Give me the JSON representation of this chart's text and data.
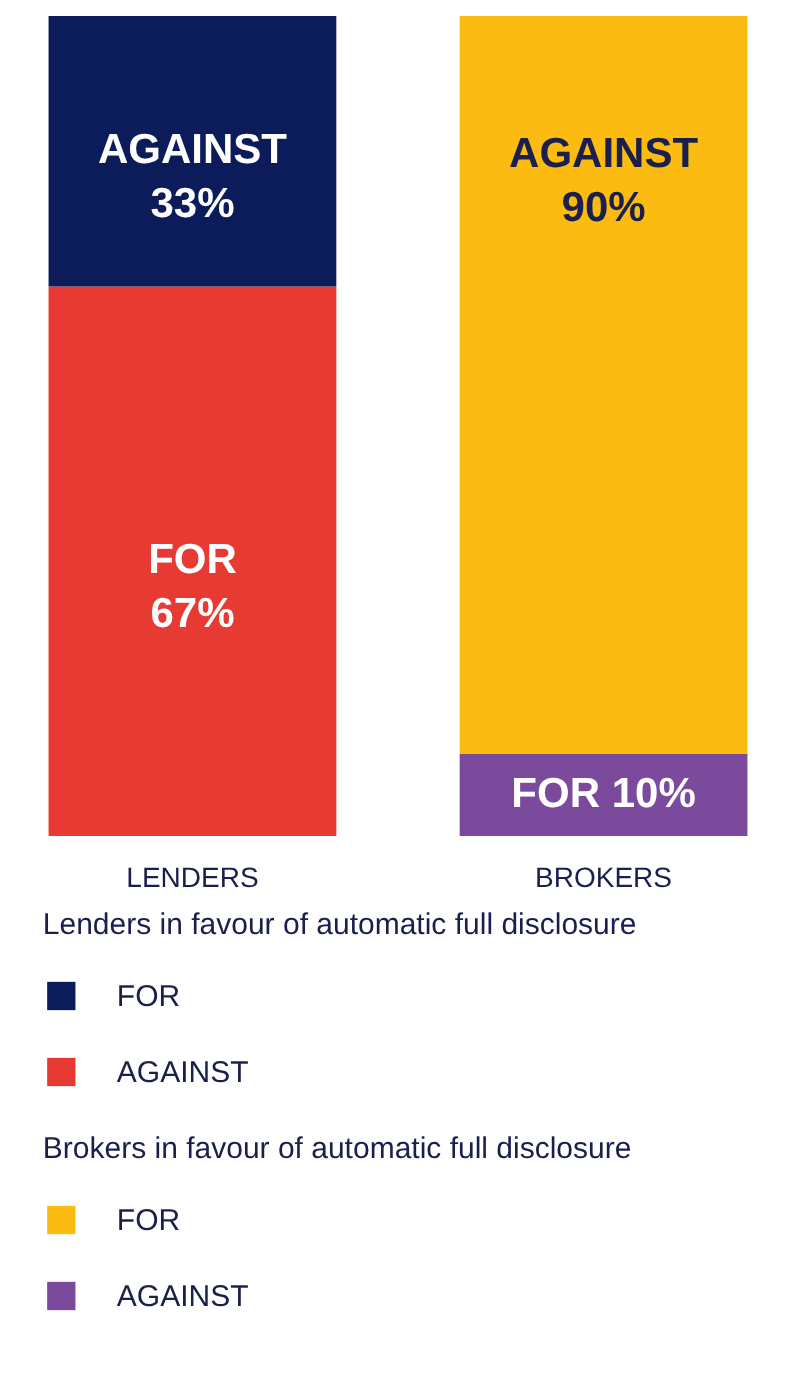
{
  "chart_data": {
    "type": "bar",
    "stacked": true,
    "categories": [
      "LENDERS",
      "BROKERS"
    ],
    "series": [
      {
        "colors": [
          "#e63a33",
          "#7b4a9c"
        ],
        "values": [
          67,
          10
        ],
        "value_labels": [
          "FOR\n67%",
          "FOR 10%"
        ]
      },
      {
        "colors": [
          "#0c1c5a",
          "#fbbb10"
        ],
        "values": [
          33,
          90
        ],
        "value_labels": [
          "AGAINST\n33%",
          "AGAINST\n90%"
        ]
      }
    ],
    "annotations": [
      "Lenders in favour of automatic full disclosure",
      "FOR",
      "AGAINST",
      "Brokers in favour of automatic full disclosure",
      "FOR",
      "AGAINST"
    ],
    "tick_labels": "x",
    "grid": false
  }
}
